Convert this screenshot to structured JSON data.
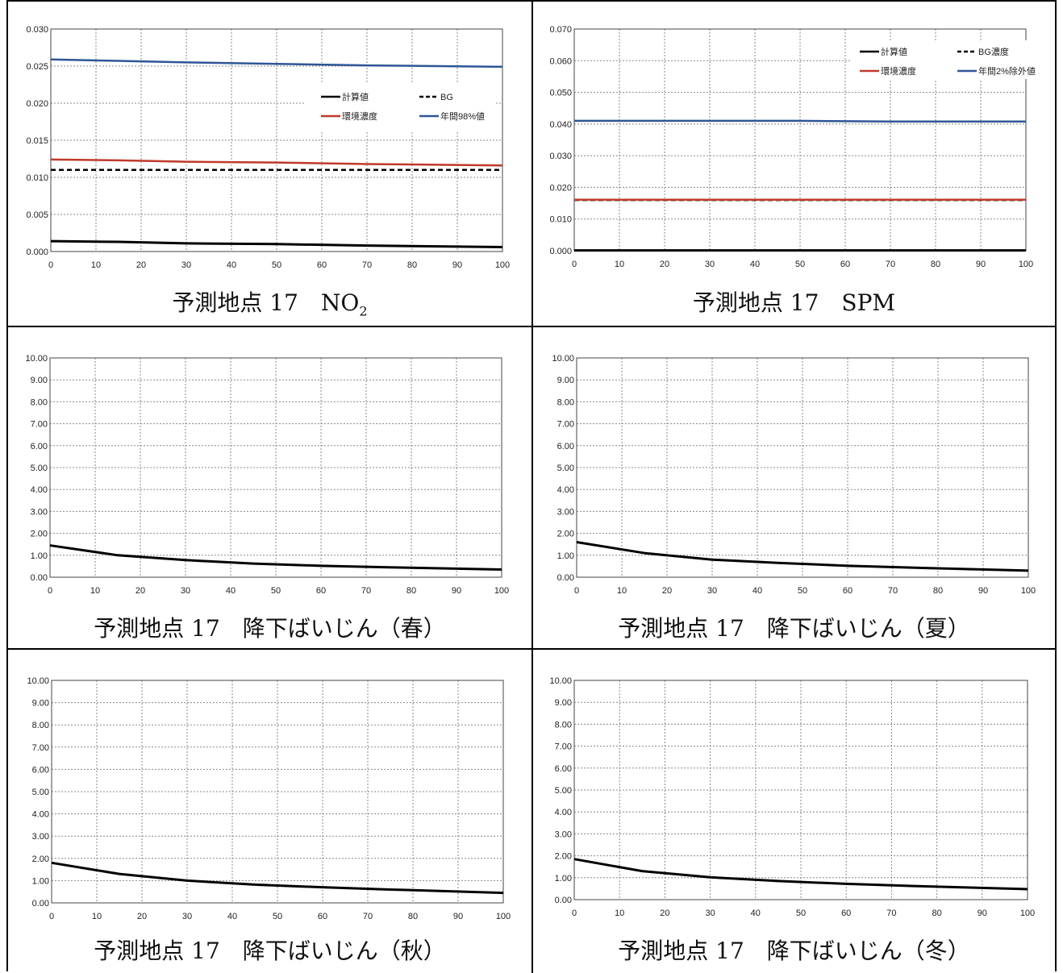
{
  "captions": [
    {
      "main": "予測地点 17　NO",
      "sub": "2"
    },
    {
      "main": "予測地点 17　SPM",
      "sub": ""
    },
    {
      "main": "予測地点 17　降下ばいじん（春）",
      "sub": ""
    },
    {
      "main": "予測地点 17　降下ばいじん（夏）",
      "sub": ""
    },
    {
      "main": "予測地点 17　降下ばいじん（秋）",
      "sub": ""
    },
    {
      "main": "予測地点 17　降下ばいじん（冬）",
      "sub": ""
    }
  ],
  "chart_data": [
    {
      "type": "line",
      "x": [
        0,
        15,
        30,
        50,
        70,
        100
      ],
      "xlim": [
        0,
        100
      ],
      "xticks": [
        "0",
        "10",
        "20",
        "30",
        "40",
        "50",
        "60",
        "70",
        "80",
        "90",
        "100"
      ],
      "ylim": [
        0,
        0.03
      ],
      "yticks": [
        "0.000",
        "0.005",
        "0.010",
        "0.015",
        "0.020",
        "0.025",
        "0.030"
      ],
      "grid": true,
      "legend_position": "right",
      "series": [
        {
          "name": "計算値",
          "color": "#000000",
          "dash": "solid",
          "values": [
            0.0014,
            0.0013,
            0.0011,
            0.001,
            0.0008,
            0.0006
          ]
        },
        {
          "name": "BG",
          "color": "#000000",
          "dash": "dashed",
          "values": [
            0.011,
            0.011,
            0.011,
            0.011,
            0.011,
            0.011
          ]
        },
        {
          "name": "環境濃度",
          "color": "#c0392b",
          "dash": "solid",
          "values": [
            0.0124,
            0.0123,
            0.0121,
            0.012,
            0.0118,
            0.0116
          ]
        },
        {
          "name": "年間98%値",
          "color": "#2f5597",
          "dash": "solid",
          "values": [
            0.0259,
            0.0257,
            0.0255,
            0.0253,
            0.0251,
            0.0249
          ]
        }
      ]
    },
    {
      "type": "line",
      "x": [
        0,
        15,
        30,
        50,
        70,
        100
      ],
      "xlim": [
        0,
        100
      ],
      "xticks": [
        "0",
        "10",
        "20",
        "30",
        "40",
        "50",
        "60",
        "70",
        "80",
        "90",
        "100"
      ],
      "ylim": [
        0,
        0.07
      ],
      "yticks": [
        "0.000",
        "0.010",
        "0.020",
        "0.030",
        "0.040",
        "0.050",
        "0.060",
        "0.070"
      ],
      "grid": true,
      "legend_position": "top-right",
      "series": [
        {
          "name": "計算値",
          "color": "#000000",
          "dash": "solid",
          "values": [
            0.0001,
            0.0001,
            0.0001,
            0.0001,
            0.0001,
            0.0001
          ]
        },
        {
          "name": "BG濃度",
          "color": "#000000",
          "dash": "dashed",
          "values": [
            0.016,
            0.016,
            0.016,
            0.016,
            0.016,
            0.016
          ]
        },
        {
          "name": "環境濃度",
          "color": "#c0392b",
          "dash": "solid",
          "values": [
            0.0161,
            0.0161,
            0.0161,
            0.0161,
            0.0161,
            0.0161
          ]
        },
        {
          "name": "年間2%除外値",
          "color": "#2f5597",
          "dash": "solid",
          "values": [
            0.041,
            0.041,
            0.041,
            0.041,
            0.0408,
            0.0408
          ]
        }
      ]
    },
    {
      "type": "line",
      "x": [
        0,
        15,
        30,
        45,
        60,
        75,
        100
      ],
      "xlim": [
        0,
        100
      ],
      "xticks": [
        "0",
        "10",
        "20",
        "30",
        "40",
        "50",
        "60",
        "70",
        "80",
        "90",
        "100"
      ],
      "ylim": [
        0,
        10
      ],
      "yticks": [
        "0.00",
        "1.00",
        "2.00",
        "3.00",
        "4.00",
        "5.00",
        "6.00",
        "7.00",
        "8.00",
        "9.00",
        "10.00"
      ],
      "grid": true,
      "series": [
        {
          "color": "#000000",
          "dash": "solid",
          "values": [
            1.45,
            1.0,
            0.78,
            0.62,
            0.52,
            0.45,
            0.35
          ]
        }
      ]
    },
    {
      "type": "line",
      "x": [
        0,
        15,
        30,
        45,
        60,
        75,
        100
      ],
      "xlim": [
        0,
        100
      ],
      "xticks": [
        "0",
        "10",
        "20",
        "30",
        "40",
        "50",
        "60",
        "70",
        "80",
        "90",
        "100"
      ],
      "ylim": [
        0,
        10
      ],
      "yticks": [
        "0.00",
        "1.00",
        "2.00",
        "3.00",
        "4.00",
        "5.00",
        "6.00",
        "7.00",
        "8.00",
        "9.00",
        "10.00"
      ],
      "grid": true,
      "series": [
        {
          "color": "#000000",
          "dash": "solid",
          "values": [
            1.6,
            1.1,
            0.8,
            0.65,
            0.52,
            0.43,
            0.3
          ]
        }
      ]
    },
    {
      "type": "line",
      "x": [
        0,
        15,
        30,
        45,
        60,
        75,
        100
      ],
      "xlim": [
        0,
        100
      ],
      "xticks": [
        "0",
        "10",
        "20",
        "30",
        "40",
        "50",
        "60",
        "70",
        "80",
        "90",
        "100"
      ],
      "ylim": [
        0,
        10
      ],
      "yticks": [
        "0.00",
        "1.00",
        "2.00",
        "3.00",
        "4.00",
        "5.00",
        "6.00",
        "7.00",
        "8.00",
        "9.00",
        "10.00"
      ],
      "grid": true,
      "series": [
        {
          "color": "#000000",
          "dash": "solid",
          "values": [
            1.8,
            1.3,
            1.0,
            0.82,
            0.7,
            0.6,
            0.45
          ]
        }
      ]
    },
    {
      "type": "line",
      "x": [
        0,
        15,
        30,
        45,
        60,
        75,
        100
      ],
      "xlim": [
        0,
        100
      ],
      "xticks": [
        "0",
        "10",
        "20",
        "30",
        "40",
        "50",
        "60",
        "70",
        "80",
        "90",
        "100"
      ],
      "ylim": [
        0,
        10
      ],
      "yticks": [
        "0.00",
        "1.00",
        "2.00",
        "3.00",
        "4.00",
        "5.00",
        "6.00",
        "7.00",
        "8.00",
        "9.00",
        "10.00"
      ],
      "grid": true,
      "series": [
        {
          "color": "#000000",
          "dash": "solid",
          "values": [
            1.85,
            1.3,
            1.02,
            0.85,
            0.72,
            0.62,
            0.48
          ]
        }
      ]
    }
  ]
}
